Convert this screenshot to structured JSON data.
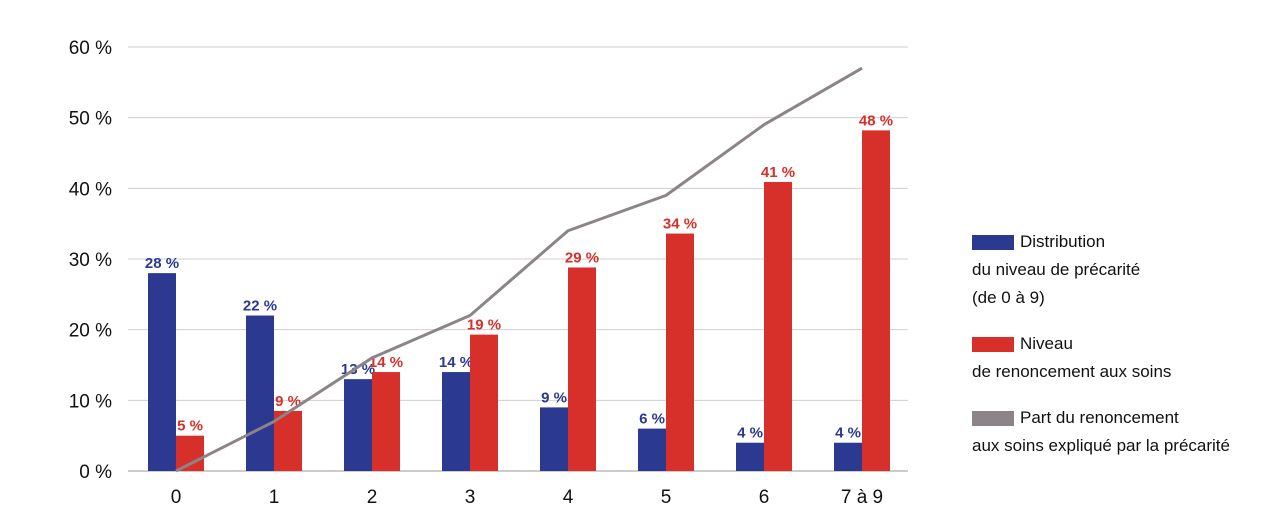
{
  "chart_data": {
    "type": "bar",
    "categories": [
      "0",
      "1",
      "2",
      "3",
      "4",
      "5",
      "6",
      "7 à 9"
    ],
    "ylim": [
      0,
      60
    ],
    "yticks": [
      "0 %",
      "10 %",
      "20 %",
      "30 %",
      "40 %",
      "50 %",
      "60 %"
    ],
    "ytick_values": [
      0,
      10,
      20,
      30,
      40,
      50,
      60
    ],
    "grid": true,
    "legend_position": "right",
    "series": [
      {
        "name": "Distribution du niveau de précarité (de 0 à 9)",
        "kind": "bar",
        "color": "#2b3990",
        "values": [
          28,
          22,
          13,
          14,
          9,
          6,
          4,
          4
        ],
        "labels": [
          "28 %",
          "22 %",
          "13 %",
          "14 %",
          "9 %",
          "6 %",
          "4 %",
          "4 %"
        ]
      },
      {
        "name": "Niveau de renoncement aux soins",
        "kind": "bar",
        "color": "#d7302a",
        "values": [
          5,
          8.5,
          14,
          19.3,
          28.8,
          33.6,
          40.9,
          48.2
        ],
        "labels": [
          "5 %",
          "9 %",
          "14 %",
          "19 %",
          "29 %",
          "34 %",
          "41 %",
          "48 %"
        ]
      },
      {
        "name": "Part du renoncement aux soins expliqué par la précarité",
        "kind": "line",
        "color": "#8c8488",
        "values": [
          0,
          7,
          16,
          22,
          34,
          39,
          49,
          57
        ]
      }
    ]
  },
  "legend": {
    "items": [
      {
        "lines": [
          "Distribution",
          "du niveau de précarité",
          "(de 0 à 9)"
        ],
        "color": "#2b3990",
        "kind": "bar"
      },
      {
        "lines": [
          "Niveau",
          "de renoncement aux soins"
        ],
        "color": "#d7302a",
        "kind": "bar"
      },
      {
        "lines": [
          "Part du renoncement",
          "aux soins expliqué par la précarité"
        ],
        "color": "#8c8488",
        "kind": "line"
      }
    ]
  }
}
